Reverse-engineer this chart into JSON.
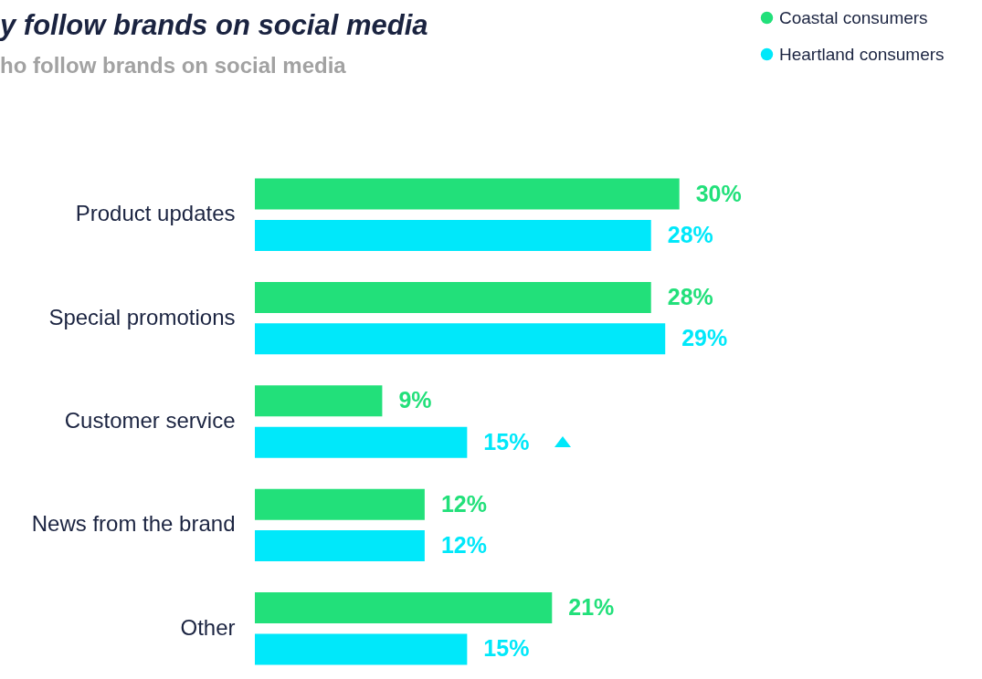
{
  "chart_data": {
    "type": "bar",
    "orientation": "horizontal",
    "title": "y follow brands on social media",
    "subtitle": "ho follow brands on social media",
    "categories": [
      "Product updates",
      "Special promotions",
      "Customer service",
      "News from the brand",
      "Other"
    ],
    "series": [
      {
        "name": "Coastal consumers",
        "color": "#22e07a",
        "values": [
          30,
          28,
          9,
          12,
          21
        ],
        "value_labels": [
          "30%",
          "28%",
          "9%",
          "12%",
          "21%"
        ]
      },
      {
        "name": "Heartland consumers",
        "color": "#00e8fa",
        "values": [
          28,
          29,
          15,
          12,
          15
        ],
        "value_labels": [
          "28%",
          "29%",
          "15%",
          "12%",
          "15%"
        ]
      }
    ],
    "legend": "top right",
    "grid": false
  }
}
